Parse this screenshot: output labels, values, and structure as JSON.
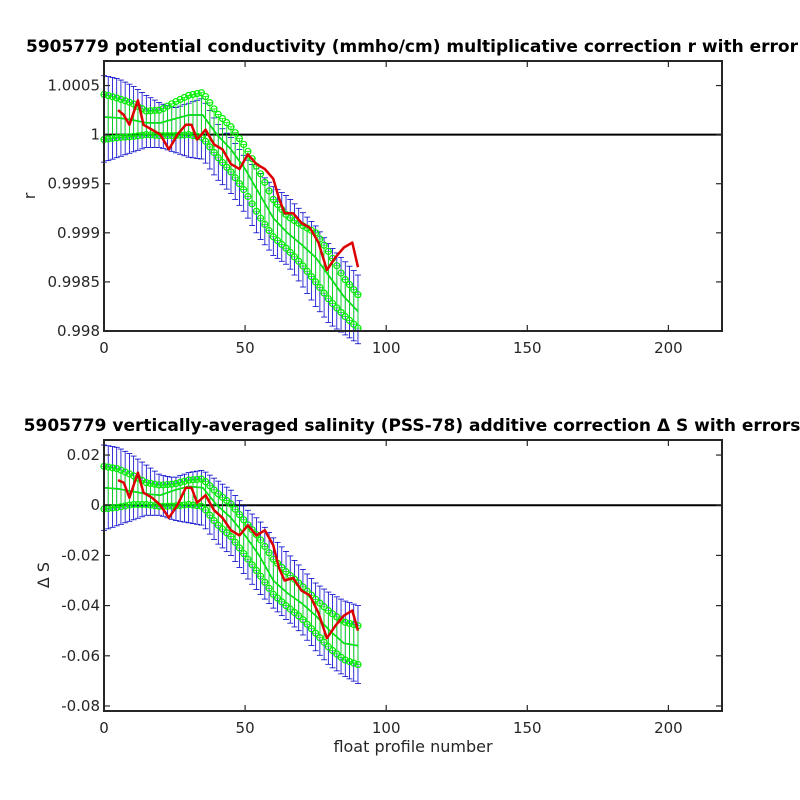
{
  "chart_data": [
    {
      "type": "line",
      "title": "5905779 potential conductivity (mmho/cm) multiplicative correction r with error",
      "xlabel": "",
      "ylabel": "r",
      "xlim": [
        0,
        219
      ],
      "ylim": [
        0.998,
        1.00075
      ],
      "xticks": [
        "0",
        "50",
        "100",
        "150",
        "200"
      ],
      "yticks": [
        "0.998",
        "0.9985",
        "0.999",
        "0.9995",
        "1",
        "1.0005"
      ],
      "grid": false,
      "reference_line": 1,
      "series": [
        {
          "role": "fit_with_2x_error_bars",
          "color": "#0000cc",
          "x": [
            0,
            5,
            10,
            15,
            20,
            25,
            30,
            35,
            40,
            45,
            50,
            55,
            60,
            65,
            70,
            75,
            80,
            85,
            90
          ],
          "y": [
            1.00018,
            1.00017,
            1.00015,
            1.00012,
            1.00012,
            1.00016,
            1.0002,
            1.0002,
            1.0,
            0.99985,
            0.99965,
            0.9994,
            0.99915,
            0.999,
            0.99888,
            0.99875,
            0.99855,
            0.99835,
            0.9982
          ],
          "err_lo": [
            0.99972,
            0.99977,
            0.99982,
            0.99987,
            0.99987,
            0.99982,
            0.99977,
            0.99975,
            0.99955,
            0.9994,
            0.9992,
            0.99895,
            0.99877,
            0.99867,
            0.99847,
            0.99825,
            0.99807,
            0.99797,
            0.99787
          ],
          "err_hi": [
            1.0006,
            1.00057,
            1.0005,
            1.0004,
            1.00032,
            1.00027,
            1.00032,
            1.00037,
            1.00012,
            0.99997,
            0.99977,
            0.99962,
            0.99947,
            0.99937,
            0.99922,
            0.99907,
            0.99887,
            0.99872,
            0.99857
          ]
        },
        {
          "role": "fit_with_1x_error_bars",
          "color": "#00ee00",
          "x": [
            0,
            5,
            10,
            15,
            20,
            25,
            30,
            35,
            40,
            45,
            50,
            55,
            60,
            65,
            70,
            75,
            80,
            85,
            90
          ],
          "y": [
            1.00018,
            1.00017,
            1.00015,
            1.00012,
            1.00012,
            1.00016,
            1.0002,
            1.0002,
            1.0,
            0.99985,
            0.99965,
            0.9994,
            0.99915,
            0.999,
            0.99888,
            0.99875,
            0.99855,
            0.99835,
            0.9982
          ],
          "err_lo": [
            0.99995,
            0.99997,
            0.99998,
            1.0,
            0.99999,
            0.99999,
            1.0,
            0.99997,
            0.99978,
            0.99962,
            0.99942,
            0.99917,
            0.99896,
            0.99883,
            0.99868,
            0.9985,
            0.99831,
            0.99816,
            0.99803
          ],
          "err_hi": [
            1.00041,
            1.00037,
            1.00032,
            1.00024,
            1.00025,
            1.00033,
            1.0004,
            1.00043,
            1.00022,
            1.00008,
            0.99988,
            0.99963,
            0.99934,
            0.99917,
            0.99908,
            0.999,
            0.99879,
            0.99854,
            0.99837
          ]
        },
        {
          "role": "profile_estimate",
          "color": "#dd0000",
          "x": [
            5,
            7,
            9,
            12,
            14,
            17,
            20,
            23,
            26,
            29,
            31,
            33,
            36,
            39,
            42,
            45,
            48,
            51,
            54,
            57,
            60,
            62,
            64,
            67,
            70,
            73,
            76,
            79,
            82,
            85,
            88,
            90
          ],
          "y": [
            1.00025,
            1.0002,
            1.0001,
            1.00035,
            1.0001,
            1.00005,
            1.0,
            0.99985,
            1.0,
            1.0001,
            1.0001,
            0.99995,
            1.00005,
            0.9999,
            0.99985,
            0.9997,
            0.99965,
            0.9998,
            0.9997,
            0.99965,
            0.99955,
            0.99935,
            0.9992,
            0.9992,
            0.9991,
            0.99905,
            0.9989,
            0.99862,
            0.99875,
            0.99885,
            0.9989,
            0.99865
          ]
        }
      ]
    },
    {
      "type": "line",
      "title": "5905779 vertically-averaged salinity (PSS-78) additive correction Δ S with errors",
      "xlabel": "float profile number",
      "ylabel": "Δ S",
      "xlim": [
        0,
        219
      ],
      "ylim": [
        -0.082,
        0.026
      ],
      "xticks": [
        "0",
        "50",
        "100",
        "150",
        "200"
      ],
      "yticks": [
        "-0.08",
        "-0.06",
        "-0.04",
        "-0.02",
        "0",
        "0.02"
      ],
      "grid": false,
      "reference_line": 0,
      "series": [
        {
          "role": "fit_with_2x_error_bars",
          "color": "#0000cc",
          "x": [
            0,
            5,
            10,
            15,
            20,
            25,
            30,
            35,
            40,
            45,
            50,
            55,
            60,
            65,
            70,
            75,
            80,
            85,
            90
          ],
          "y": [
            0.007,
            0.0065,
            0.0055,
            0.0045,
            0.004,
            0.006,
            0.0075,
            0.007,
            0.0,
            -0.005,
            -0.012,
            -0.02,
            -0.03,
            -0.035,
            -0.039,
            -0.044,
            -0.05,
            -0.055,
            -0.056
          ],
          "err_lo": [
            -0.01,
            -0.008,
            -0.006,
            -0.004,
            -0.004,
            -0.006,
            -0.007,
            -0.008,
            -0.015,
            -0.02,
            -0.028,
            -0.035,
            -0.041,
            -0.046,
            -0.051,
            -0.058,
            -0.064,
            -0.068,
            -0.071
          ],
          "err_hi": [
            0.024,
            0.023,
            0.02,
            0.016,
            0.012,
            0.011,
            0.013,
            0.014,
            0.01,
            0.006,
            -0.001,
            -0.006,
            -0.013,
            -0.019,
            -0.025,
            -0.031,
            -0.035,
            -0.038,
            -0.04
          ]
        },
        {
          "role": "fit_with_1x_error_bars",
          "color": "#00ee00",
          "x": [
            0,
            5,
            10,
            15,
            20,
            25,
            30,
            35,
            40,
            45,
            50,
            55,
            60,
            65,
            70,
            75,
            80,
            85,
            90
          ],
          "y": [
            0.007,
            0.0065,
            0.0055,
            0.0045,
            0.004,
            0.006,
            0.0075,
            0.007,
            0.0,
            -0.005,
            -0.012,
            -0.02,
            -0.03,
            -0.035,
            -0.039,
            -0.044,
            -0.05,
            -0.055,
            -0.056
          ],
          "err_lo": [
            -0.0015,
            -0.0008,
            0.0003,
            0.0003,
            -0.0005,
            -0.0003,
            0.0003,
            -0.0005,
            -0.0075,
            -0.0125,
            -0.02,
            -0.0275,
            -0.0355,
            -0.0405,
            -0.045,
            -0.051,
            -0.057,
            -0.0615,
            -0.0635
          ],
          "err_hi": [
            0.0155,
            0.0145,
            0.012,
            0.009,
            0.008,
            0.0085,
            0.01,
            0.0105,
            0.005,
            0.0005,
            -0.0065,
            -0.013,
            -0.0215,
            -0.027,
            -0.032,
            -0.0375,
            -0.0425,
            -0.0465,
            -0.048
          ]
        },
        {
          "role": "profile_estimate",
          "color": "#dd0000",
          "x": [
            5,
            7,
            9,
            12,
            14,
            17,
            20,
            23,
            26,
            29,
            31,
            33,
            36,
            39,
            42,
            45,
            48,
            51,
            54,
            57,
            60,
            62,
            64,
            67,
            70,
            73,
            76,
            79,
            82,
            85,
            88,
            90
          ],
          "y": [
            0.01,
            0.009,
            0.003,
            0.013,
            0.005,
            0.003,
            0.0,
            -0.005,
            0.0,
            0.007,
            0.007,
            0.001,
            0.004,
            -0.002,
            -0.005,
            -0.01,
            -0.012,
            -0.008,
            -0.012,
            -0.01,
            -0.016,
            -0.025,
            -0.03,
            -0.029,
            -0.034,
            -0.036,
            -0.043,
            -0.053,
            -0.048,
            -0.044,
            -0.042,
            -0.05
          ]
        }
      ]
    }
  ]
}
